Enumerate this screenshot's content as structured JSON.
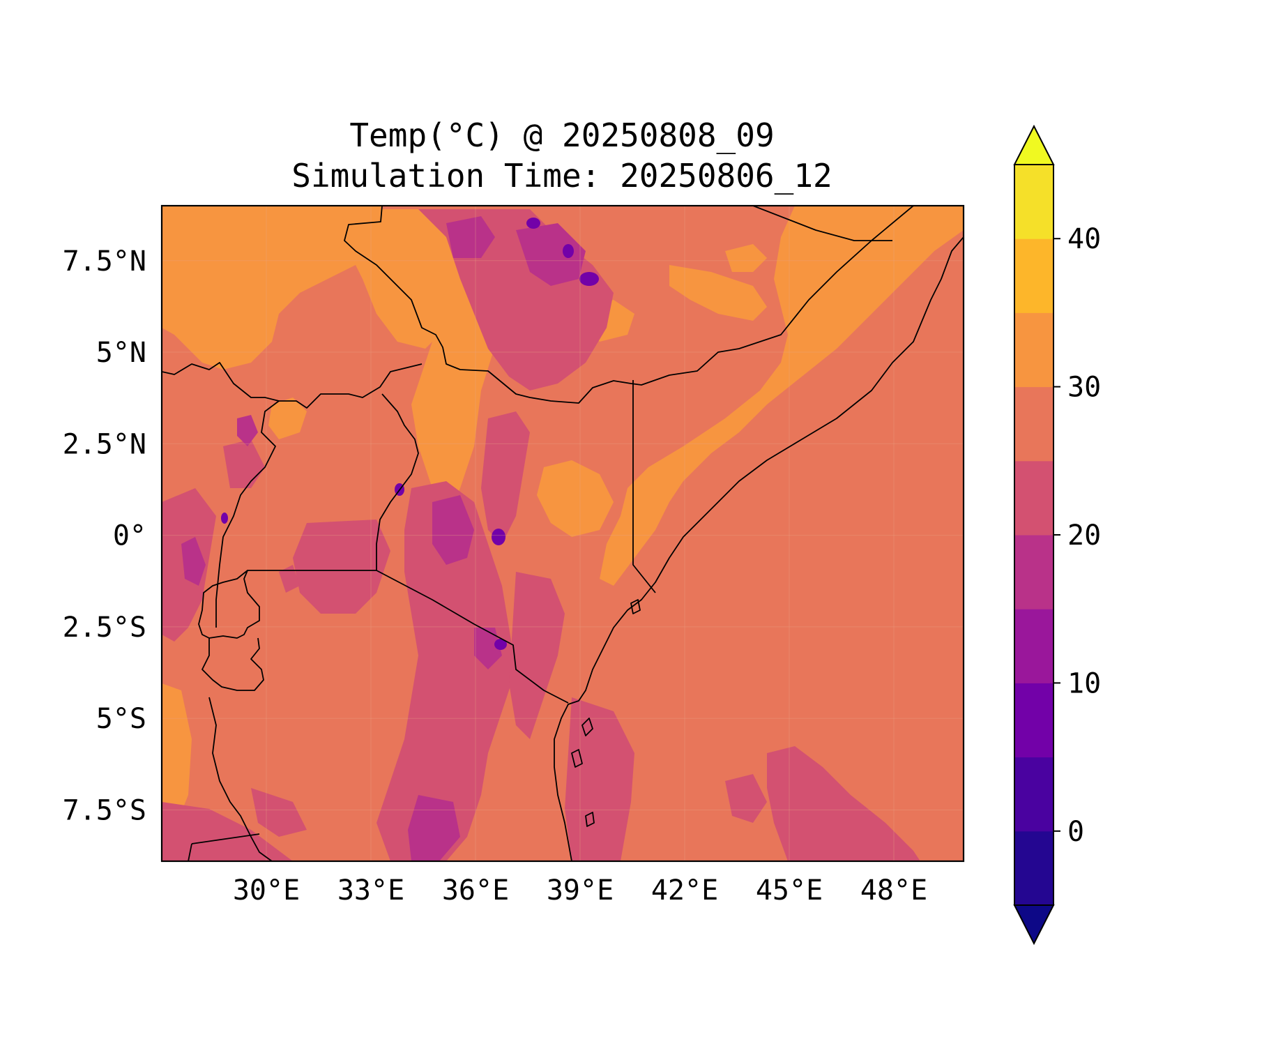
{
  "chart_data": {
    "type": "map",
    "title_line1": "Temp(°C) @ 20250808_09",
    "title_line2": "Simulation Time: 20250806_12",
    "variable": "Temp(°C)",
    "valid_time": "20250808_09",
    "simulation_time": "20250806_12",
    "lon_range": [
      27,
      50
    ],
    "lat_range": [
      -8.9,
      9
    ],
    "x_ticks": [
      {
        "value": 30,
        "label": "30°E"
      },
      {
        "value": 33,
        "label": "33°E"
      },
      {
        "value": 36,
        "label": "36°E"
      },
      {
        "value": 39,
        "label": "39°E"
      },
      {
        "value": 42,
        "label": "42°E"
      },
      {
        "value": 45,
        "label": "45°E"
      },
      {
        "value": 48,
        "label": "48°E"
      }
    ],
    "y_ticks": [
      {
        "value": 7.5,
        "label": "7.5°N"
      },
      {
        "value": 5,
        "label": "5°N"
      },
      {
        "value": 2.5,
        "label": "2.5°N"
      },
      {
        "value": 0,
        "label": "0°"
      },
      {
        "value": -2.5,
        "label": "2.5°S"
      },
      {
        "value": -5,
        "label": "5°S"
      },
      {
        "value": -7.5,
        "label": "7.5°S"
      }
    ],
    "colorbar": {
      "min": -5,
      "max": 45,
      "extend": "both",
      "tick_values": [
        0,
        10,
        20,
        30,
        40
      ],
      "tick_labels": [
        "0",
        "10",
        "20",
        "30",
        "40"
      ],
      "bins": [
        {
          "from": -5,
          "to": 0,
          "color": "#240691"
        },
        {
          "from": 0,
          "to": 5,
          "color": "#4a02a0"
        },
        {
          "from": 5,
          "to": 10,
          "color": "#7201a8"
        },
        {
          "from": 10,
          "to": 15,
          "color": "#9a179b"
        },
        {
          "from": 15,
          "to": 20,
          "color": "#b93289"
        },
        {
          "from": 20,
          "to": 25,
          "color": "#d35171"
        },
        {
          "from": 25,
          "to": 30,
          "color": "#e8765a"
        },
        {
          "from": 30,
          "to": 35,
          "color": "#f79540"
        },
        {
          "from": 35,
          "to": 40,
          "color": "#fdb62a"
        },
        {
          "from": 40,
          "to": 45,
          "color": "#f5e029"
        }
      ],
      "under_color": "#0d0887",
      "over_color": "#f0f921"
    },
    "dominant_field_color": "#e8765a"
  }
}
